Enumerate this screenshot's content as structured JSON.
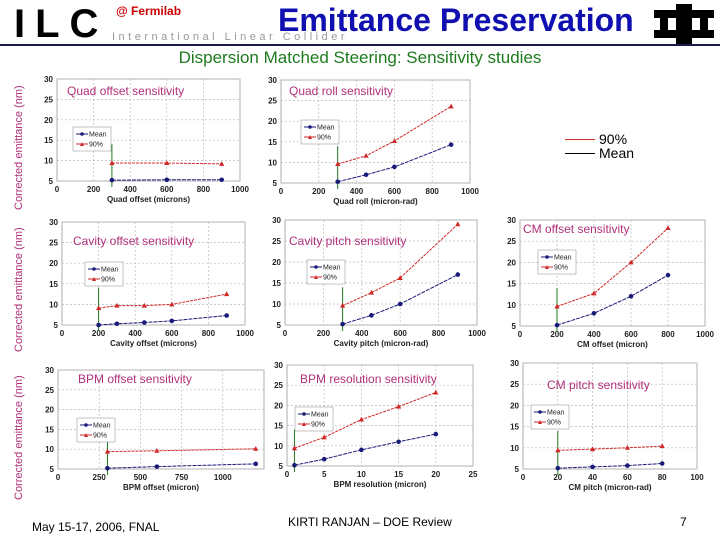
{
  "header": {
    "logo_letters": "ILC",
    "logo_subtitle": "International Linear Collider",
    "location": "@ Fermilab",
    "title": "Emittance Preservation",
    "subtitle": "Dispersion Matched Steering:  Sensitivity studies",
    "fermilab_logo": "fermilab-logo"
  },
  "ylabel": "Corrected emittance (nm)",
  "global_legend": {
    "p90": "90%",
    "mean": "Mean"
  },
  "colors": {
    "mean": "#1a1a7a",
    "p90": "#d02828",
    "title": "#b0307a",
    "marker_line": "#1e7a1e"
  },
  "footer": {
    "date": "May 15-17, 2006, FNAL",
    "author": "KIRTI RANJAN – DOE Review",
    "page": "7"
  },
  "chart_data": [
    {
      "type": "line",
      "title": "Quad offset sensitivity",
      "xlabel": "Quad offset (microns)",
      "ylabel": "Corrected emittance (nm)",
      "xlim": [
        0,
        1000
      ],
      "ylim": [
        5,
        30
      ],
      "xticks": [
        0,
        200,
        400,
        600,
        800,
        1000
      ],
      "yticks": [
        5,
        10,
        15,
        20,
        25,
        30
      ],
      "grid": true,
      "legend": "left",
      "x": [
        300,
        600,
        900
      ],
      "series": [
        {
          "name": "Mean",
          "values": [
            5.2,
            5.3,
            5.3
          ]
        },
        {
          "name": "90%",
          "values": [
            9.4,
            9.4,
            9.2
          ]
        }
      ],
      "marker_x": 300
    },
    {
      "type": "line",
      "title": "Quad roll sensitivity",
      "xlabel": "Quad roll (micron-rad)",
      "xlim": [
        0,
        1000
      ],
      "ylim": [
        5,
        30
      ],
      "xticks": [
        0,
        200,
        400,
        600,
        800,
        1000
      ],
      "yticks": [
        5,
        10,
        15,
        20,
        25,
        30
      ],
      "grid": true,
      "legend": "left",
      "x": [
        300,
        450,
        600,
        900
      ],
      "series": [
        {
          "name": "Mean",
          "values": [
            5.3,
            7.0,
            8.9,
            14.3
          ]
        },
        {
          "name": "90%",
          "values": [
            9.6,
            11.6,
            15.2,
            23.6
          ]
        }
      ],
      "marker_x": 300
    },
    {
      "type": "line",
      "title": "Cavity offset sensitivity",
      "xlabel": "Cavity offset (microns)",
      "ylabel": "Corrected emittance (nm)",
      "xlim": [
        0,
        1000
      ],
      "ylim": [
        5,
        30
      ],
      "xticks": [
        0,
        200,
        400,
        600,
        800,
        1000
      ],
      "yticks": [
        5,
        10,
        15,
        20,
        25,
        30
      ],
      "grid": true,
      "legend": "left",
      "x": [
        200,
        300,
        450,
        600,
        900
      ],
      "series": [
        {
          "name": "Mean",
          "values": [
            5.0,
            5.3,
            5.6,
            6.0,
            7.3
          ]
        },
        {
          "name": "90%",
          "values": [
            9.1,
            9.7,
            9.7,
            10.0,
            12.5
          ]
        }
      ],
      "marker_x": 200
    },
    {
      "type": "line",
      "title": "Cavity pitch sensitivity",
      "xlabel": "Cavity pitch (micron-rad)",
      "xlim": [
        0,
        1000
      ],
      "ylim": [
        5,
        30
      ],
      "xticks": [
        0,
        200,
        400,
        600,
        800,
        1000
      ],
      "yticks": [
        5,
        10,
        15,
        20,
        25,
        30
      ],
      "grid": true,
      "legend": "left",
      "x": [
        300,
        450,
        600,
        900
      ],
      "series": [
        {
          "name": "Mean",
          "values": [
            5.2,
            7.3,
            10.0,
            17.0
          ]
        },
        {
          "name": "90%",
          "values": [
            9.6,
            12.7,
            16.2,
            29.0
          ]
        }
      ],
      "marker_x": 300
    },
    {
      "type": "line",
      "title": "CM offset sensitivity",
      "xlabel": "CM offset (micron)",
      "xlim": [
        0,
        1000
      ],
      "ylim": [
        5,
        30
      ],
      "xticks": [
        0,
        200,
        400,
        600,
        800,
        1000
      ],
      "yticks": [
        5,
        10,
        15,
        20,
        25,
        30
      ],
      "grid": true,
      "legend": "left",
      "x": [
        200,
        400,
        600,
        800
      ],
      "series": [
        {
          "name": "Mean",
          "values": [
            5.2,
            8.0,
            12.0,
            17.0
          ]
        },
        {
          "name": "90%",
          "values": [
            9.6,
            12.7,
            20.0,
            28.1
          ]
        }
      ],
      "marker_x": 200
    },
    {
      "type": "line",
      "title": "BPM offset sensitivity",
      "xlabel": "BPM offset (micron)",
      "ylabel": "Corrected emittance (nm)",
      "xlim": [
        0,
        1250
      ],
      "ylim": [
        5,
        30
      ],
      "xticks": [
        0,
        250,
        500,
        750,
        1000
      ],
      "yticks": [
        5,
        10,
        15,
        20,
        25,
        30
      ],
      "grid": true,
      "legend": "left",
      "x": [
        300,
        600,
        1200
      ],
      "series": [
        {
          "name": "Mean",
          "values": [
            5.2,
            5.6,
            6.3
          ]
        },
        {
          "name": "90%",
          "values": [
            9.4,
            9.6,
            10.1
          ]
        }
      ],
      "marker_x": 300
    },
    {
      "type": "line",
      "title": "BPM resolution sensitivity",
      "xlabel": "BPM resolution (micron)",
      "xlim": [
        0,
        25
      ],
      "ylim": [
        5,
        30
      ],
      "xticks": [
        0,
        5,
        10,
        15,
        20,
        25
      ],
      "yticks": [
        5,
        10,
        15,
        20,
        25,
        30
      ],
      "grid": true,
      "legend": "left",
      "x": [
        1,
        5,
        10,
        15,
        20
      ],
      "series": [
        {
          "name": "Mean",
          "values": [
            5.2,
            6.7,
            9.0,
            11.0,
            12.9
          ]
        },
        {
          "name": "90%",
          "values": [
            9.4,
            12.1,
            16.5,
            19.7,
            23.2
          ]
        }
      ],
      "marker_x": 1
    },
    {
      "type": "line",
      "title": "CM pitch sensitivity",
      "xlabel": "CM pitch (micron-rad)",
      "xlim": [
        0,
        100
      ],
      "ylim": [
        5,
        30
      ],
      "xticks": [
        0,
        20,
        40,
        60,
        80,
        100
      ],
      "yticks": [
        5,
        10,
        15,
        20,
        25,
        30
      ],
      "grid": true,
      "legend": "left",
      "x": [
        20,
        40,
        60,
        80
      ],
      "series": [
        {
          "name": "Mean",
          "values": [
            5.2,
            5.5,
            5.8,
            6.3
          ]
        },
        {
          "name": "90%",
          "values": [
            9.4,
            9.7,
            10.0,
            10.4
          ]
        }
      ],
      "marker_x": 20
    }
  ]
}
